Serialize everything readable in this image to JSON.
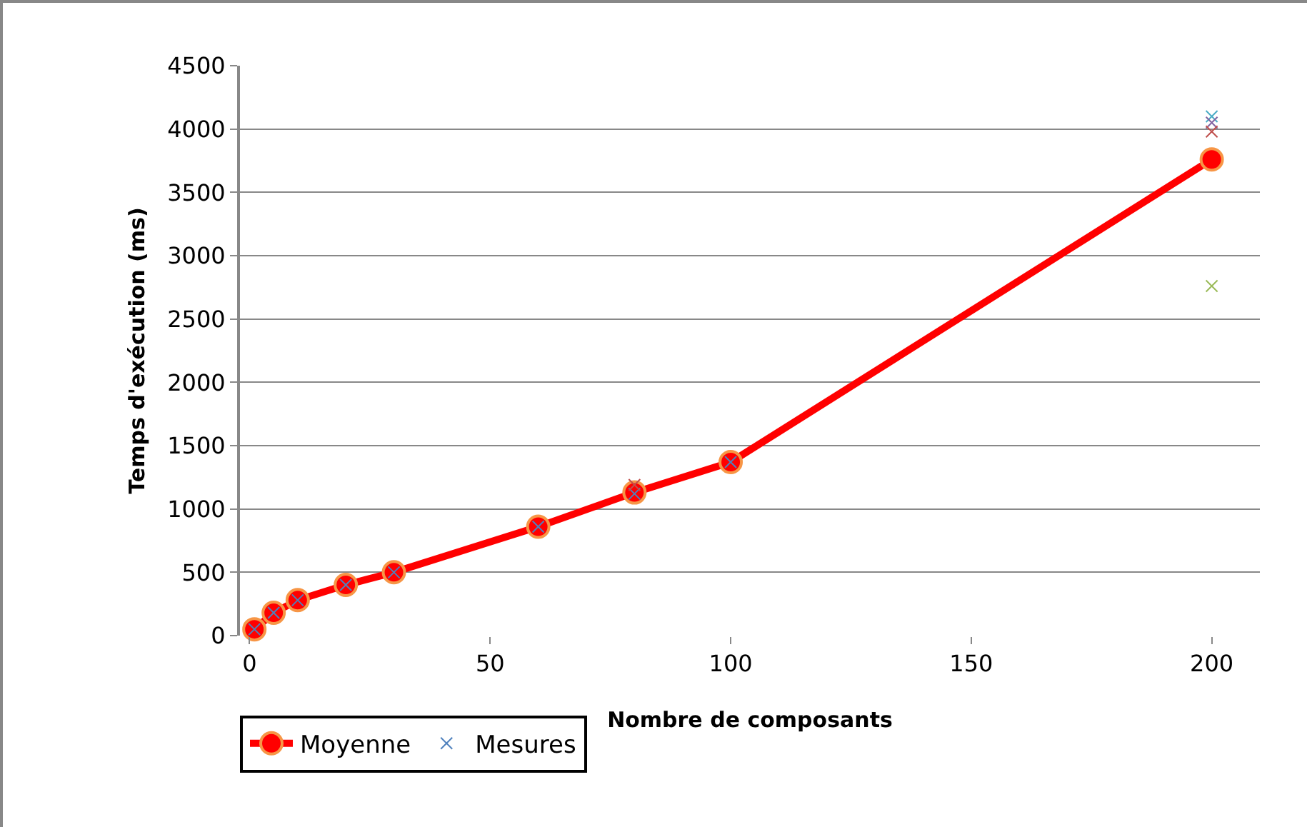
{
  "chart_data": {
    "type": "line",
    "xlabel": "Nombre de composants",
    "ylabel": "Temps d'exécution (ms)",
    "xlim": [
      -2,
      210
    ],
    "xticks": [
      0,
      50,
      100,
      150,
      200
    ],
    "ylim": [
      0,
      4500
    ],
    "yticks": [
      0,
      500,
      1000,
      1500,
      2000,
      2500,
      3000,
      3500,
      4000,
      4500
    ],
    "grid": "y",
    "legend": "bottom left",
    "series": [
      {
        "name": "Moyenne",
        "color": "#ff0000",
        "marker": "circle",
        "line_style": "solid",
        "x": [
          1,
          5,
          10,
          20,
          30,
          60,
          80,
          100,
          200
        ],
        "values": [
          50,
          180,
          280,
          400,
          500,
          860,
          1130,
          1370,
          3760
        ]
      },
      {
        "name": "Mesures",
        "type": "scatter",
        "color": "#4f81bd",
        "marker": "cross",
        "x": [
          1,
          5,
          10,
          20,
          30,
          60,
          80,
          80,
          100,
          200,
          200,
          200,
          200
        ],
        "values": [
          50,
          180,
          280,
          400,
          500,
          860,
          1120,
          1190,
          1370,
          4100,
          4050,
          3980,
          2760
        ],
        "colors": [
          "#4f81bd",
          "#4f81bd",
          "#4f81bd",
          "#4f81bd",
          "#4f81bd",
          "#4f81bd",
          "#4f81bd",
          "#c0504d",
          "#4f81bd",
          "#4bacc6",
          "#8064a2",
          "#c0504d",
          "#9bbb59"
        ]
      }
    ]
  }
}
